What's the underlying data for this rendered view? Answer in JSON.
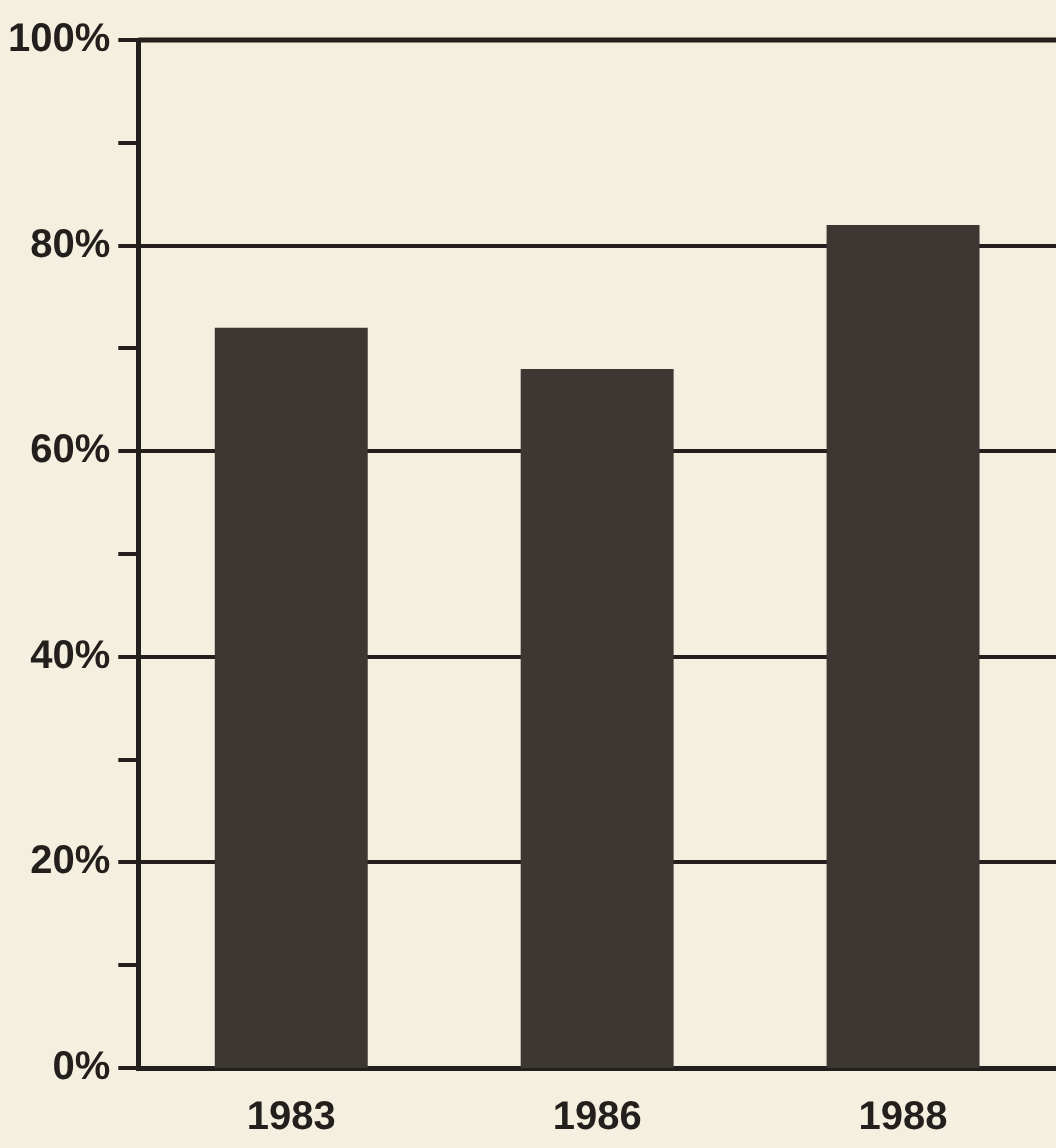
{
  "chart_data": {
    "type": "bar",
    "categories": [
      "1983",
      "1986",
      "1988"
    ],
    "values": [
      72,
      68,
      82
    ],
    "color": "#3d3734",
    "ylim": [
      0,
      100
    ],
    "yticks": [
      {
        "value": 0,
        "label": "0%"
      },
      {
        "value": 10,
        "label": null
      },
      {
        "value": 20,
        "label": "20%"
      },
      {
        "value": 30,
        "label": null
      },
      {
        "value": 40,
        "label": "40%"
      },
      {
        "value": 50,
        "label": null
      },
      {
        "value": 60,
        "label": "60%"
      },
      {
        "value": 70,
        "label": null
      },
      {
        "value": 80,
        "label": "80%"
      },
      {
        "value": 90,
        "label": null
      },
      {
        "value": 100,
        "label": "100%"
      }
    ],
    "grid": "y",
    "legend": false
  }
}
